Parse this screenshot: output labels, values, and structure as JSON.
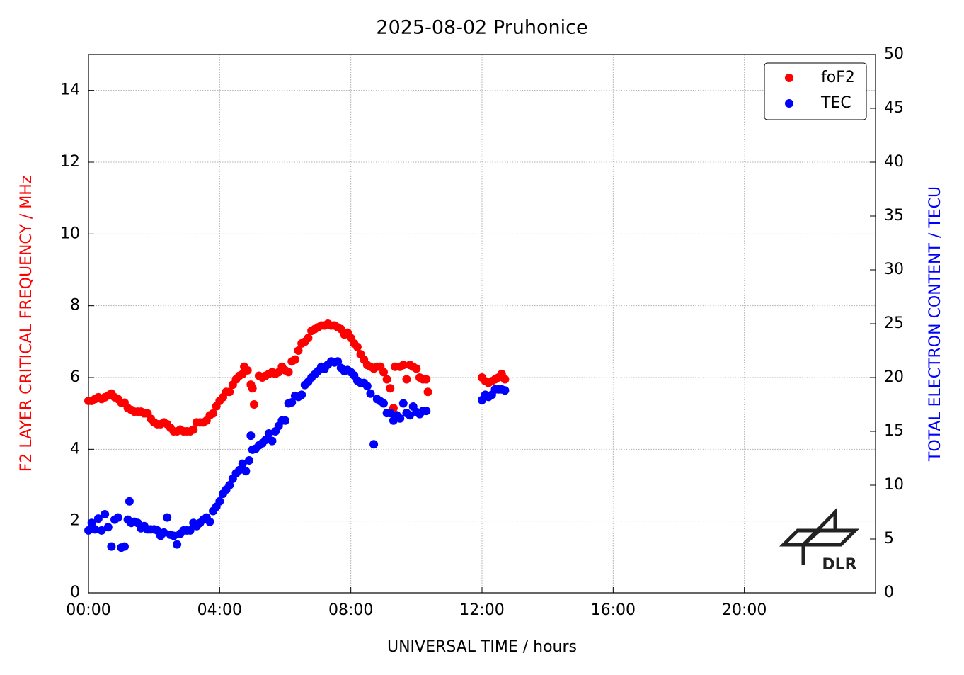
{
  "chart_data": {
    "type": "scatter",
    "title": "2025-08-02 Pruhonice",
    "xlabel": "UNIVERSAL TIME / hours",
    "ylabel": "F2 LAYER CRITICAL FREQUENCY / MHz",
    "y2label": "TOTAL ELECTRON CONTENT / TECU",
    "ylabel_color": "#ff0000",
    "y2label_color": "#0000ff",
    "logo_text": "DLR",
    "xlim": [
      0,
      24
    ],
    "xticks": [
      {
        "value": 0,
        "label": "00:00"
      },
      {
        "value": 4,
        "label": "04:00"
      },
      {
        "value": 8,
        "label": "08:00"
      },
      {
        "value": 12,
        "label": "12:00"
      },
      {
        "value": 16,
        "label": "16:00"
      },
      {
        "value": 20,
        "label": "20:00"
      }
    ],
    "ylim": [
      0,
      15
    ],
    "yticks": [
      0,
      2,
      4,
      6,
      8,
      10,
      12,
      14
    ],
    "y2lim": [
      0,
      50
    ],
    "y2ticks": [
      0,
      5,
      10,
      15,
      20,
      25,
      30,
      35,
      40,
      45,
      50
    ],
    "grid": true,
    "legend": "upper right",
    "series": [
      {
        "name": "foF2",
        "color": "#ff0000",
        "x": [
          0,
          0.1,
          0.2,
          0.3,
          0.4,
          0.5,
          0.6,
          0.7,
          0.8,
          0.9,
          1.0,
          1.1,
          1.2,
          1.3,
          1.4,
          1.5,
          1.6,
          1.7,
          1.8,
          1.9,
          2.0,
          2.1,
          2.2,
          2.3,
          2.4,
          2.5,
          2.6,
          2.7,
          2.8,
          2.9,
          3.0,
          3.1,
          3.2,
          3.3,
          3.4,
          3.5,
          3.6,
          3.7,
          3.8,
          3.9,
          4.0,
          4.1,
          4.2,
          4.3,
          4.4,
          4.5,
          4.6,
          4.7,
          4.75,
          4.85,
          4.95,
          5.0,
          5.05,
          5.2,
          5.3,
          5.4,
          5.5,
          5.6,
          5.7,
          5.8,
          5.9,
          6.0,
          6.1,
          6.2,
          6.3,
          6.4,
          6.5,
          6.6,
          6.7,
          6.8,
          6.9,
          7.0,
          7.1,
          7.2,
          7.3,
          7.4,
          7.5,
          7.6,
          7.7,
          7.8,
          7.9,
          8.0,
          8.1,
          8.2,
          8.3,
          8.4,
          8.5,
          8.6,
          8.7,
          8.8,
          8.9,
          9.0,
          9.1,
          9.2,
          9.3,
          9.35,
          9.5,
          9.6,
          9.7,
          9.8,
          9.9,
          10.0,
          10.1,
          10.2,
          10.3,
          10.35,
          12.0,
          12.1,
          12.2,
          12.3,
          12.4,
          12.5,
          12.6,
          12.7
        ],
        "values": [
          5.35,
          5.35,
          5.4,
          5.45,
          5.4,
          5.45,
          5.5,
          5.55,
          5.45,
          5.4,
          5.3,
          5.3,
          5.15,
          5.1,
          5.05,
          5.05,
          5.05,
          5.0,
          5.0,
          4.85,
          4.75,
          4.7,
          4.7,
          4.75,
          4.7,
          4.6,
          4.5,
          4.5,
          4.55,
          4.5,
          4.5,
          4.5,
          4.55,
          4.75,
          4.75,
          4.75,
          4.8,
          4.95,
          5.0,
          5.2,
          5.35,
          5.45,
          5.6,
          5.6,
          5.8,
          5.95,
          6.05,
          6.1,
          6.3,
          6.2,
          5.8,
          5.7,
          5.25,
          6.05,
          6.0,
          6.05,
          6.1,
          6.15,
          6.1,
          6.15,
          6.3,
          6.2,
          6.15,
          6.45,
          6.5,
          6.75,
          6.95,
          7.0,
          7.1,
          7.3,
          7.35,
          7.4,
          7.45,
          7.45,
          7.5,
          7.45,
          7.45,
          7.4,
          7.35,
          7.2,
          7.25,
          7.1,
          6.95,
          6.85,
          6.65,
          6.5,
          6.35,
          6.3,
          6.25,
          6.3,
          6.3,
          6.15,
          5.95,
          5.7,
          5.15,
          6.3,
          6.3,
          6.35,
          5.95,
          6.35,
          6.3,
          6.25,
          6.0,
          5.95,
          5.95,
          5.6,
          6.0,
          5.9,
          5.85,
          5.9,
          5.95,
          6.0,
          6.1,
          5.95
        ]
      },
      {
        "name": "TEC",
        "color": "#0000ff",
        "axis": "y2",
        "x": [
          0,
          0.1,
          0.2,
          0.3,
          0.4,
          0.5,
          0.6,
          0.7,
          0.8,
          0.9,
          1.0,
          1.1,
          1.2,
          1.25,
          1.3,
          1.4,
          1.5,
          1.6,
          1.7,
          1.8,
          1.9,
          2.0,
          2.1,
          2.2,
          2.3,
          2.4,
          2.5,
          2.6,
          2.7,
          2.8,
          2.9,
          3.0,
          3.1,
          3.2,
          3.3,
          3.4,
          3.5,
          3.6,
          3.7,
          3.8,
          3.9,
          4.0,
          4.1,
          4.2,
          4.3,
          4.4,
          4.5,
          4.6,
          4.7,
          4.8,
          4.9,
          4.95,
          5.0,
          5.1,
          5.2,
          5.3,
          5.4,
          5.5,
          5.6,
          5.7,
          5.8,
          5.9,
          6.0,
          6.1,
          6.2,
          6.3,
          6.4,
          6.5,
          6.6,
          6.7,
          6.8,
          6.9,
          7.0,
          7.1,
          7.2,
          7.3,
          7.4,
          7.5,
          7.6,
          7.7,
          7.8,
          7.9,
          8.0,
          8.1,
          8.2,
          8.3,
          8.4,
          8.5,
          8.6,
          8.7,
          8.8,
          8.9,
          9.0,
          9.1,
          9.2,
          9.3,
          9.4,
          9.5,
          9.6,
          9.7,
          9.8,
          9.9,
          10.0,
          10.1,
          10.2,
          10.3,
          12.0,
          12.1,
          12.2,
          12.3,
          12.4,
          12.5,
          12.6,
          12.7
        ],
        "values": [
          5.8,
          6.5,
          5.9,
          6.9,
          5.8,
          7.3,
          6.1,
          4.3,
          6.8,
          7.0,
          4.2,
          4.3,
          6.8,
          8.5,
          6.5,
          6.6,
          6.5,
          6.0,
          6.2,
          5.9,
          5.9,
          5.9,
          5.8,
          5.3,
          5.6,
          7.0,
          5.4,
          5.3,
          4.5,
          5.5,
          5.8,
          5.8,
          5.8,
          6.5,
          6.2,
          6.5,
          6.8,
          7.0,
          6.6,
          7.6,
          8.0,
          8.5,
          9.2,
          9.6,
          10.0,
          10.6,
          11.1,
          11.4,
          12.0,
          11.3,
          12.3,
          14.6,
          13.3,
          13.4,
          13.7,
          13.9,
          14.2,
          14.8,
          14.1,
          15.0,
          15.5,
          16.0,
          16.0,
          17.6,
          17.7,
          18.3,
          18.2,
          18.4,
          19.3,
          19.6,
          20.0,
          20.3,
          20.6,
          21.0,
          20.8,
          21.2,
          21.5,
          21.4,
          21.5,
          20.9,
          20.6,
          20.7,
          20.5,
          20.2,
          19.7,
          19.5,
          19.5,
          19.2,
          18.5,
          13.8,
          18.0,
          17.8,
          17.6,
          16.7,
          16.7,
          16.0,
          16.5,
          16.2,
          17.6,
          16.7,
          16.5,
          17.3,
          16.8,
          16.6,
          16.9,
          16.9,
          17.9,
          18.4,
          18.2,
          18.4,
          18.9,
          18.9,
          18.9,
          18.8
        ]
      }
    ]
  }
}
